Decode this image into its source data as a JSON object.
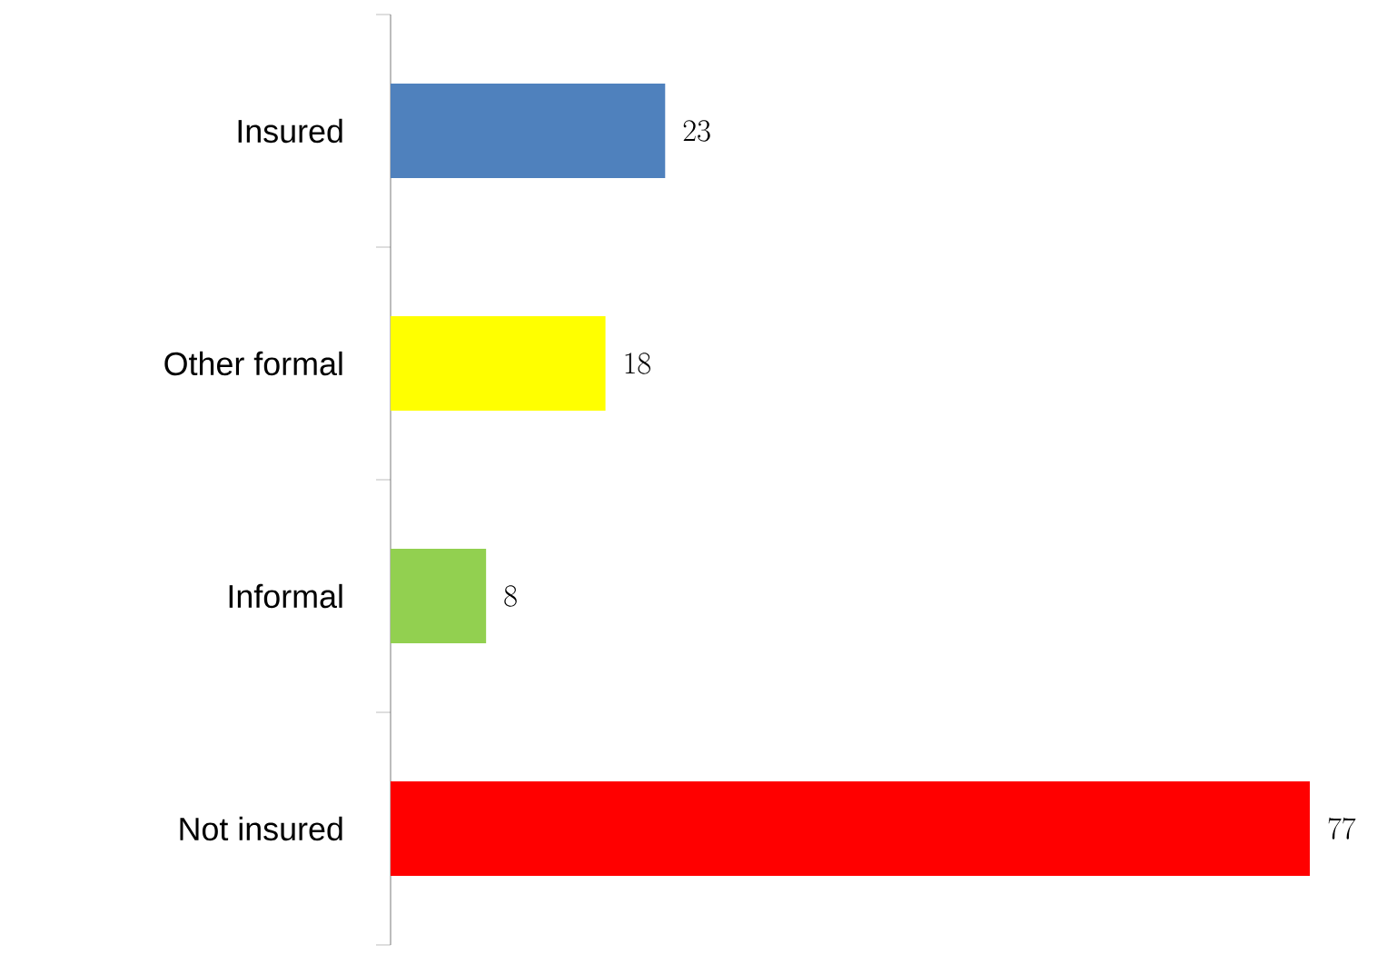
{
  "chart_data": {
    "type": "bar",
    "orientation": "horizontal",
    "categories": [
      "Insured",
      "Other formal",
      "Informal",
      "Not insured"
    ],
    "values": [
      23,
      18,
      8,
      77
    ],
    "colors": [
      "#4f81bd",
      "#ffff00",
      "#92d050",
      "#ff0000"
    ],
    "data_labels": true
  }
}
